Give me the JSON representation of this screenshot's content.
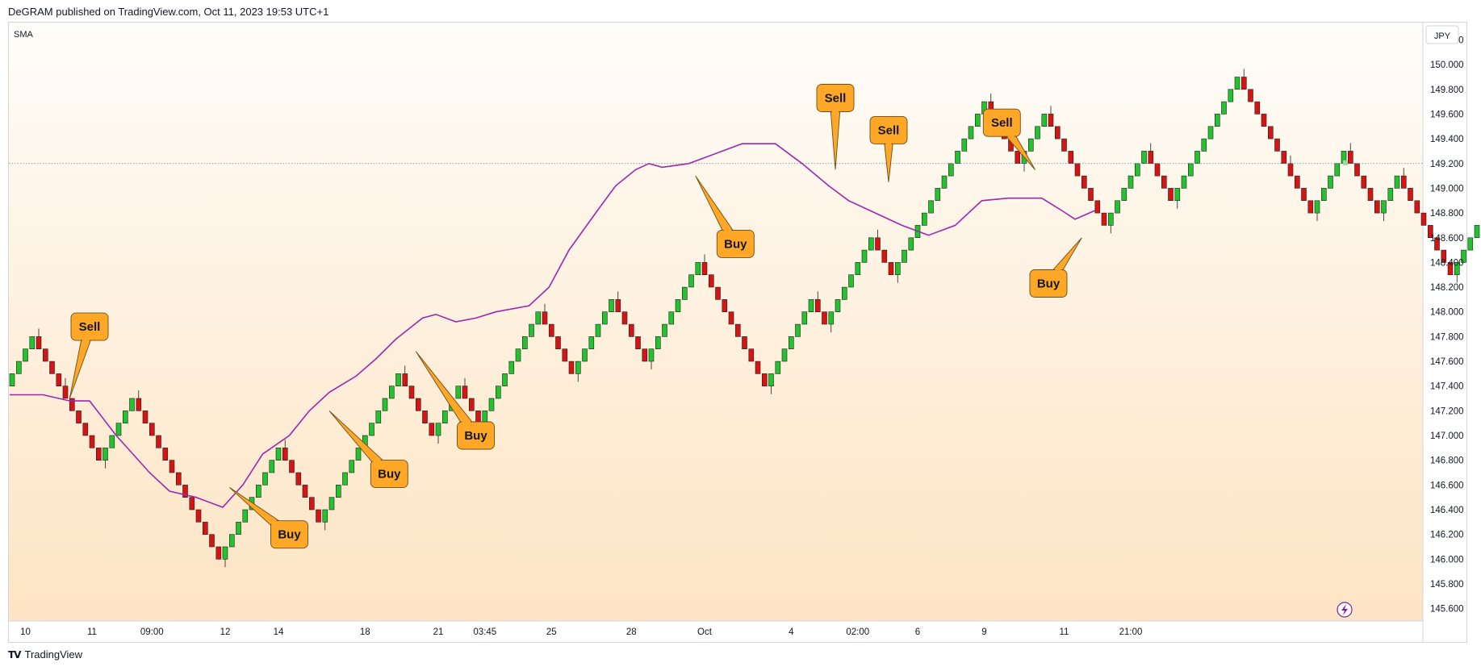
{
  "header": {
    "publisher": "DeGRAM published on TradingView.com, Oct 11, 2023 19:53 UTC+1"
  },
  "indicator_label": "SMA",
  "footer": {
    "brand": "TradingView"
  },
  "colors": {
    "up": "#22c32e",
    "down": "#d61414",
    "sma": "#9c27b0",
    "callout": "#ffa726",
    "bg_top": "#fffdf9",
    "bg_bottom": "#fde4c3"
  },
  "chart_data": {
    "type": "renko",
    "currency": "JPY",
    "ylim": [
      145.5,
      150.34
    ],
    "last_price": 149.2,
    "y_ticks": [
      "150.200",
      "150.000",
      "149.800",
      "149.600",
      "149.400",
      "149.200",
      "149.000",
      "148.800",
      "148.600",
      "148.400",
      "148.200",
      "148.000",
      "147.800",
      "147.600",
      "147.400",
      "147.200",
      "147.000",
      "146.800",
      "146.600",
      "146.400",
      "146.200",
      "146.000",
      "145.800",
      "145.600"
    ],
    "x_labels": [
      "10",
      "11",
      "09:00",
      "12",
      "14",
      "18",
      "21",
      "03:45",
      "25",
      "28",
      "Oct",
      "4",
      "02:00",
      "6",
      "9",
      "11",
      "21:00"
    ],
    "x_label_bricks": [
      2,
      12,
      21,
      32,
      40,
      53,
      64,
      71,
      81,
      93,
      104,
      117,
      127,
      136,
      146,
      158,
      168
    ],
    "brick_size": 0.1,
    "renko_path": [
      147.4,
      147.8,
      147.4,
      146.8,
      147.3,
      146.0,
      146.9,
      146.3,
      147.5,
      147.0,
      147.4,
      147.1,
      148.0,
      147.5,
      148.1,
      147.6,
      148.4,
      147.4,
      148.1,
      147.9,
      148.6,
      148.3,
      149.7,
      149.2,
      149.6,
      148.7,
      149.3,
      148.9,
      149.9,
      149.2,
      148.8,
      149.3,
      148.8,
      149.1,
      148.3,
      149.0,
      148.3,
      149.4,
      148.8,
      149.1,
      148.3,
      149.0,
      148.5,
      148.9,
      148.7,
      149.2
    ],
    "sma_line": [
      [
        0,
        147.33
      ],
      [
        5,
        147.33
      ],
      [
        9,
        147.28
      ],
      [
        12,
        147.28
      ],
      [
        16,
        147.0
      ],
      [
        21,
        146.7
      ],
      [
        24,
        146.55
      ],
      [
        28,
        146.5
      ],
      [
        32,
        146.42
      ],
      [
        35,
        146.6
      ],
      [
        38,
        146.85
      ],
      [
        42,
        147.0
      ],
      [
        45,
        147.2
      ],
      [
        48,
        147.35
      ],
      [
        52,
        147.48
      ],
      [
        55,
        147.62
      ],
      [
        58,
        147.78
      ],
      [
        62,
        147.95
      ],
      [
        64,
        147.98
      ],
      [
        67,
        147.92
      ],
      [
        70,
        147.95
      ],
      [
        73,
        148.0
      ],
      [
        78,
        148.05
      ],
      [
        81,
        148.2
      ],
      [
        84,
        148.5
      ],
      [
        88,
        148.8
      ],
      [
        91,
        149.02
      ],
      [
        94,
        149.15
      ],
      [
        96,
        149.2
      ],
      [
        98,
        149.17
      ],
      [
        102,
        149.2
      ],
      [
        107,
        149.3
      ],
      [
        110,
        149.36
      ],
      [
        115,
        149.36
      ],
      [
        119,
        149.2
      ],
      [
        123,
        149.02
      ],
      [
        126,
        148.9
      ],
      [
        130,
        148.8
      ],
      [
        134,
        148.7
      ],
      [
        138,
        148.62
      ],
      [
        142,
        148.7
      ],
      [
        146,
        148.9
      ],
      [
        150,
        148.92
      ],
      [
        155,
        148.92
      ],
      [
        158,
        148.82
      ],
      [
        160,
        148.75
      ],
      [
        163,
        148.82
      ]
    ],
    "annotations": [
      {
        "label": "Sell",
        "box": [
          12,
          147.88
        ],
        "tip": [
          9,
          147.3
        ]
      },
      {
        "label": "Buy",
        "box": [
          42,
          146.2
        ],
        "tip": [
          33,
          146.58
        ]
      },
      {
        "label": "Buy",
        "box": [
          57,
          146.69
        ],
        "tip": [
          48,
          147.2
        ]
      },
      {
        "label": "Buy",
        "box": [
          70,
          147.0
        ],
        "tip": [
          61,
          147.68
        ]
      },
      {
        "label": "Buy",
        "box": [
          109,
          148.55
        ],
        "tip": [
          103,
          149.1
        ]
      },
      {
        "label": "Sell",
        "box": [
          124,
          149.73
        ],
        "tip": [
          124,
          149.15
        ]
      },
      {
        "label": "Sell",
        "box": [
          132,
          149.47
        ],
        "tip": [
          132,
          149.05
        ]
      },
      {
        "label": "Sell",
        "box": [
          149,
          149.53
        ],
        "tip": [
          154,
          149.15
        ]
      },
      {
        "label": "Buy",
        "box": [
          156,
          148.23
        ],
        "tip": [
          161,
          148.6
        ]
      }
    ]
  }
}
